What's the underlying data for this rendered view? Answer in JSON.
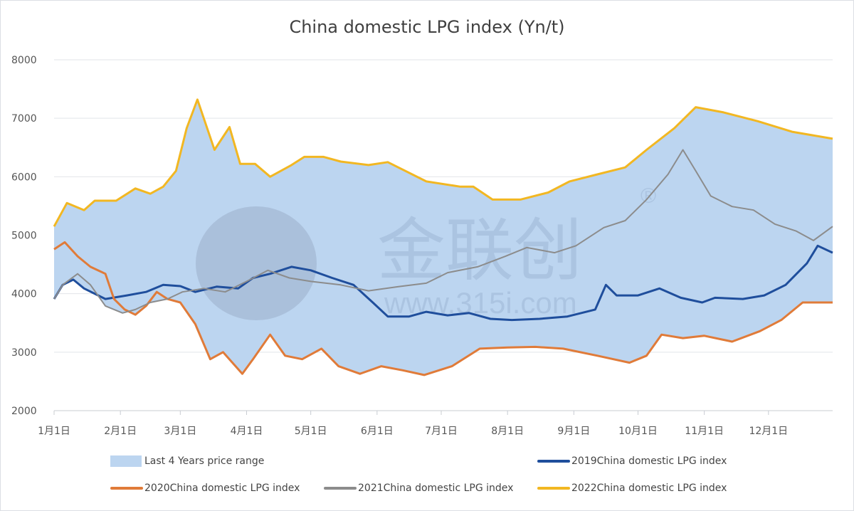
{
  "chart_data": {
    "type": "line",
    "title": "China domestic LPG index (Yn/t)",
    "xlabel": "",
    "ylabel": "",
    "ylim": [
      2000,
      8000
    ],
    "yticks": [
      "2000",
      "3000",
      "4000",
      "5000",
      "6000",
      "7000",
      "8000"
    ],
    "xticks": [
      {
        "date": "01-01",
        "label": "1月1日"
      },
      {
        "date": "02-01",
        "label": "2月1日"
      },
      {
        "date": "03-01",
        "label": "3月1日"
      },
      {
        "date": "04-01",
        "label": "4月1日"
      },
      {
        "date": "05-01",
        "label": "5月1日"
      },
      {
        "date": "06-01",
        "label": "6月1日"
      },
      {
        "date": "07-01",
        "label": "7月1日"
      },
      {
        "date": "08-01",
        "label": "8月1日"
      },
      {
        "date": "09-01",
        "label": "9月1日"
      },
      {
        "date": "10-01",
        "label": "10月1日"
      },
      {
        "date": "11-01",
        "label": "11月1日"
      },
      {
        "date": "12-01",
        "label": "12月1日"
      }
    ],
    "grid": true,
    "legend_position": "bottom",
    "range_band": {
      "name": "Last 4 Years price range",
      "color": "#bcd5f0"
    },
    "series": [
      {
        "name": "2019China domestic LPG index",
        "color": "#1f4e9c",
        "points": [
          [
            "01-01",
            3910
          ],
          [
            "01-05",
            4150
          ],
          [
            "01-10",
            4240
          ],
          [
            "01-15",
            4090
          ],
          [
            "01-25",
            3910
          ],
          [
            "02-04",
            3970
          ],
          [
            "02-13",
            4030
          ],
          [
            "02-21",
            4150
          ],
          [
            "03-01",
            4130
          ],
          [
            "03-08",
            4030
          ],
          [
            "03-18",
            4120
          ],
          [
            "03-28",
            4090
          ],
          [
            "04-04",
            4270
          ],
          [
            "04-12",
            4340
          ],
          [
            "04-22",
            4460
          ],
          [
            "05-01",
            4400
          ],
          [
            "05-11",
            4270
          ],
          [
            "05-21",
            4150
          ],
          [
            "05-30",
            3850
          ],
          [
            "06-06",
            3610
          ],
          [
            "06-16",
            3610
          ],
          [
            "06-24",
            3690
          ],
          [
            "07-04",
            3630
          ],
          [
            "07-14",
            3670
          ],
          [
            "07-24",
            3570
          ],
          [
            "08-03",
            3550
          ],
          [
            "08-16",
            3570
          ],
          [
            "08-29",
            3610
          ],
          [
            "09-11",
            3730
          ],
          [
            "09-16",
            4150
          ],
          [
            "09-21",
            3970
          ],
          [
            "10-01",
            3970
          ],
          [
            "10-11",
            4090
          ],
          [
            "10-21",
            3930
          ],
          [
            "10-31",
            3850
          ],
          [
            "11-06",
            3930
          ],
          [
            "11-19",
            3910
          ],
          [
            "11-29",
            3970
          ],
          [
            "12-09",
            4150
          ],
          [
            "12-19",
            4520
          ],
          [
            "12-24",
            4820
          ],
          [
            "12-31",
            4700
          ]
        ]
      },
      {
        "name": "2020China domestic LPG index",
        "color": "#e07b39",
        "points": [
          [
            "01-01",
            4760
          ],
          [
            "01-06",
            4880
          ],
          [
            "01-12",
            4640
          ],
          [
            "01-18",
            4460
          ],
          [
            "01-25",
            4340
          ],
          [
            "01-29",
            3910
          ],
          [
            "02-03",
            3730
          ],
          [
            "02-08",
            3640
          ],
          [
            "02-13",
            3790
          ],
          [
            "02-18",
            4030
          ],
          [
            "02-23",
            3910
          ],
          [
            "03-01",
            3850
          ],
          [
            "03-08",
            3480
          ],
          [
            "03-15",
            2880
          ],
          [
            "03-21",
            3000
          ],
          [
            "03-30",
            2630
          ],
          [
            "04-04",
            2880
          ],
          [
            "04-12",
            3300
          ],
          [
            "04-19",
            2940
          ],
          [
            "04-27",
            2880
          ],
          [
            "05-06",
            3060
          ],
          [
            "05-14",
            2760
          ],
          [
            "05-24",
            2630
          ],
          [
            "06-03",
            2760
          ],
          [
            "06-13",
            2690
          ],
          [
            "06-23",
            2610
          ],
          [
            "07-06",
            2760
          ],
          [
            "07-19",
            3060
          ],
          [
            "08-01",
            3080
          ],
          [
            "08-14",
            3090
          ],
          [
            "08-27",
            3060
          ],
          [
            "09-12",
            2940
          ],
          [
            "09-27",
            2820
          ],
          [
            "10-05",
            2940
          ],
          [
            "10-12",
            3300
          ],
          [
            "10-22",
            3240
          ],
          [
            "11-01",
            3280
          ],
          [
            "11-14",
            3180
          ],
          [
            "11-27",
            3360
          ],
          [
            "12-07",
            3550
          ],
          [
            "12-17",
            3850
          ],
          [
            "12-31",
            3850
          ]
        ]
      },
      {
        "name": "2021China domestic LPG index",
        "color": "#8c8c8c",
        "points": [
          [
            "01-01",
            3910
          ],
          [
            "01-05",
            4150
          ],
          [
            "01-12",
            4340
          ],
          [
            "01-18",
            4150
          ],
          [
            "01-25",
            3790
          ],
          [
            "02-02",
            3670
          ],
          [
            "02-08",
            3730
          ],
          [
            "02-15",
            3850
          ],
          [
            "02-23",
            3910
          ],
          [
            "03-02",
            4030
          ],
          [
            "03-12",
            4090
          ],
          [
            "03-22",
            4030
          ],
          [
            "04-01",
            4210
          ],
          [
            "04-11",
            4400
          ],
          [
            "04-21",
            4270
          ],
          [
            "05-01",
            4210
          ],
          [
            "05-15",
            4150
          ],
          [
            "05-28",
            4050
          ],
          [
            "06-11",
            4120
          ],
          [
            "06-24",
            4180
          ],
          [
            "07-04",
            4360
          ],
          [
            "07-18",
            4460
          ],
          [
            "07-31",
            4640
          ],
          [
            "08-10",
            4790
          ],
          [
            "08-23",
            4700
          ],
          [
            "09-02",
            4820
          ],
          [
            "09-15",
            5130
          ],
          [
            "09-25",
            5250
          ],
          [
            "10-05",
            5610
          ],
          [
            "10-15",
            6040
          ],
          [
            "10-22",
            6460
          ],
          [
            "10-28",
            6100
          ],
          [
            "11-04",
            5670
          ],
          [
            "11-14",
            5490
          ],
          [
            "11-24",
            5430
          ],
          [
            "12-04",
            5190
          ],
          [
            "12-14",
            5070
          ],
          [
            "12-22",
            4910
          ],
          [
            "12-31",
            5150
          ]
        ]
      },
      {
        "name": "2022China domestic LPG index",
        "color": "#f2b722",
        "points": [
          [
            "01-01",
            5150
          ],
          [
            "01-07",
            5550
          ],
          [
            "01-15",
            5430
          ],
          [
            "01-20",
            5590
          ],
          [
            "01-30",
            5590
          ],
          [
            "02-08",
            5800
          ],
          [
            "02-15",
            5710
          ],
          [
            "02-21",
            5830
          ],
          [
            "02-27",
            6100
          ],
          [
            "03-04",
            6830
          ],
          [
            "03-09",
            7320
          ],
          [
            "03-13",
            6890
          ],
          [
            "03-17",
            6460
          ],
          [
            "03-24",
            6850
          ],
          [
            "03-29",
            6220
          ],
          [
            "04-05",
            6220
          ],
          [
            "04-12",
            6000
          ],
          [
            "04-22",
            6200
          ],
          [
            "04-28",
            6340
          ],
          [
            "05-07",
            6340
          ],
          [
            "05-15",
            6260
          ],
          [
            "05-28",
            6200
          ],
          [
            "06-06",
            6250
          ],
          [
            "06-24",
            5920
          ],
          [
            "07-10",
            5830
          ],
          [
            "07-16",
            5830
          ],
          [
            "07-25",
            5610
          ],
          [
            "08-07",
            5610
          ],
          [
            "08-20",
            5730
          ],
          [
            "08-30",
            5920
          ],
          [
            "09-12",
            6040
          ],
          [
            "09-25",
            6160
          ],
          [
            "10-05",
            6460
          ],
          [
            "10-18",
            6830
          ],
          [
            "10-28",
            7190
          ],
          [
            "11-10",
            7100
          ],
          [
            "11-26",
            6950
          ],
          [
            "12-12",
            6770
          ],
          [
            "12-31",
            6650
          ]
        ]
      }
    ]
  },
  "watermark": {
    "brand": "金联创",
    "url": "www.315i.com",
    "mark": "®"
  }
}
